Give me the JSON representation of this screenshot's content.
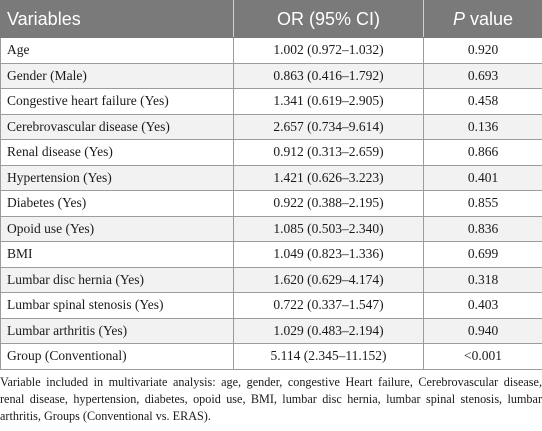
{
  "table": {
    "headers": {
      "variables": "Variables",
      "or": "OR (95% CI)",
      "p_italic": "P",
      "p_rest": " value"
    },
    "rows": [
      {
        "variable": "Age",
        "or": "1.002 (0.972–1.032)",
        "p": "0.920"
      },
      {
        "variable": "Gender (Male)",
        "or": "0.863 (0.416–1.792)",
        "p": "0.693"
      },
      {
        "variable": "Congestive heart failure (Yes)",
        "or": "1.341 (0.619–2.905)",
        "p": "0.458"
      },
      {
        "variable": "Cerebrovascular disease (Yes)",
        "or": "2.657 (0.734–9.614)",
        "p": "0.136"
      },
      {
        "variable": "Renal disease (Yes)",
        "or": "0.912 (0.313–2.659)",
        "p": "0.866"
      },
      {
        "variable": "Hypertension (Yes)",
        "or": "1.421 (0.626–3.223)",
        "p": "0.401"
      },
      {
        "variable": "Diabetes (Yes)",
        "or": "0.922 (0.388–2.195)",
        "p": "0.855"
      },
      {
        "variable": "Opoid use (Yes)",
        "or": "1.085 (0.503–2.340)",
        "p": "0.836"
      },
      {
        "variable": "BMI",
        "or": "1.049 (0.823–1.336)",
        "p": "0.699"
      },
      {
        "variable": "Lumbar disc hernia (Yes)",
        "or": "1.620 (0.629–4.174)",
        "p": "0.318"
      },
      {
        "variable": "Lumbar spinal stenosis (Yes)",
        "or": "0.722 (0.337–1.547)",
        "p": "0.403"
      },
      {
        "variable": "Lumbar arthritis (Yes)",
        "or": "1.029 (0.483–2.194)",
        "p": "0.940"
      },
      {
        "variable": "Group (Conventional)",
        "or": "5.114 (2.345–11.152)",
        "p": "<0.001"
      }
    ]
  },
  "footnote": "Variable included in multivariate analysis: age, gender, congestive Heart failure, Cerebrovascular disease, renal disease, hypertension, diabetes, opoid use, BMI, lumbar disc hernia, lumbar spinal stenosis, lumbar arthritis, Groups (Conventional vs. ERAS)."
}
